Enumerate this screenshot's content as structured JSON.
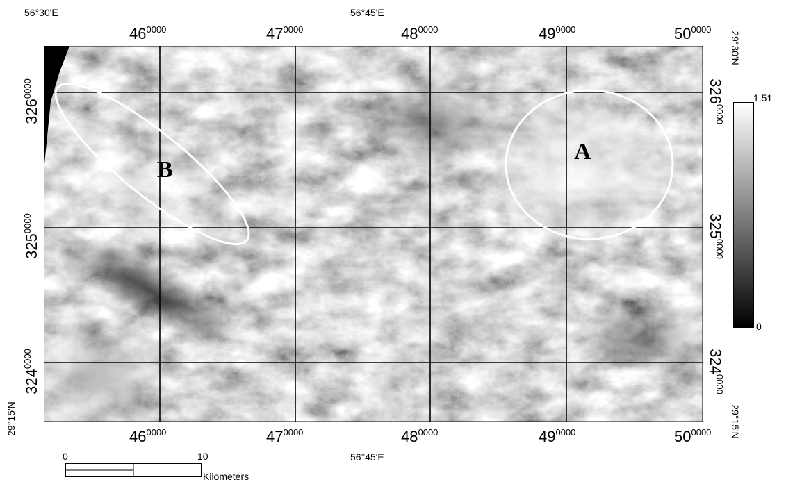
{
  "geo_labels": {
    "top_left": "56°30'E",
    "top_center": "56°45'E",
    "bottom_center": "56°45'E",
    "top_right_lat": "29°30'N",
    "bottom_right_lat": "29°15'N",
    "bottom_left_lat": "29°15'N"
  },
  "easting_ticks": [
    {
      "main": "46",
      "sup": "0000"
    },
    {
      "main": "47",
      "sup": "0000"
    },
    {
      "main": "48",
      "sup": "0000"
    },
    {
      "main": "49",
      "sup": "0000"
    },
    {
      "main": "50",
      "sup": "0000"
    }
  ],
  "northing_ticks": [
    {
      "main": "326",
      "sup": "0000"
    },
    {
      "main": "325",
      "sup": "0000"
    },
    {
      "main": "324",
      "sup": "0000"
    }
  ],
  "markers": {
    "a": "A",
    "b": "B"
  },
  "colorbar": {
    "max": "1.51",
    "min": "0",
    "colors": [
      "#ffffff",
      "#000000"
    ]
  },
  "scalebar": {
    "start": "0",
    "end": "10",
    "unit": "Kilometers"
  }
}
